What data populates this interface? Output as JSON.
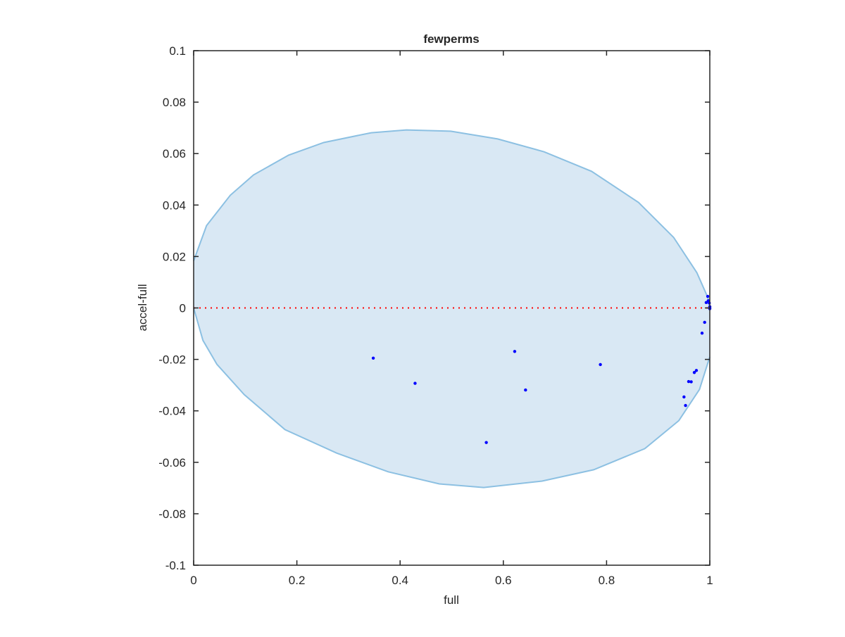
{
  "chart_data": {
    "type": "scatter",
    "title": "fewperms",
    "xlabel": "full",
    "ylabel": "accel-full",
    "xlim": [
      0,
      1
    ],
    "ylim": [
      -0.1,
      0.1
    ],
    "grid": false,
    "box": true,
    "xticks": [
      "0",
      "0.2",
      "0.4",
      "0.6",
      "0.8",
      "1"
    ],
    "xtick_values": [
      0,
      0.2,
      0.4,
      0.6,
      0.8,
      1
    ],
    "yticks": [
      "0.1",
      "0.08",
      "0.06",
      "0.04",
      "0.02",
      "0",
      "-0.02",
      "-0.04",
      "-0.06",
      "-0.08",
      "-0.1"
    ],
    "ytick_values": [
      0.1,
      0.08,
      0.06,
      0.04,
      0.02,
      0,
      -0.02,
      -0.04,
      -0.06,
      -0.08,
      -0.1
    ],
    "shaded_region": {
      "upper": [
        [
          0,
          0.0183
        ],
        [
          0.025,
          0.032
        ],
        [
          0.071,
          0.0438
        ],
        [
          0.116,
          0.0517
        ],
        [
          0.184,
          0.0594
        ],
        [
          0.252,
          0.0643
        ],
        [
          0.344,
          0.0681
        ],
        [
          0.412,
          0.0692
        ],
        [
          0.498,
          0.0687
        ],
        [
          0.589,
          0.0657
        ],
        [
          0.679,
          0.0607
        ],
        [
          0.771,
          0.0531
        ],
        [
          0.862,
          0.041
        ],
        [
          0.93,
          0.0274
        ],
        [
          0.975,
          0.0137
        ],
        [
          0.993,
          0.0055
        ],
        [
          1,
          0.002
        ]
      ],
      "lower": [
        [
          0,
          0
        ],
        [
          0.018,
          -0.0126
        ],
        [
          0.045,
          -0.0219
        ],
        [
          0.098,
          -0.0337
        ],
        [
          0.177,
          -0.0473
        ],
        [
          0.277,
          -0.0564
        ],
        [
          0.377,
          -0.0637
        ],
        [
          0.476,
          -0.0684
        ],
        [
          0.562,
          -0.0698
        ],
        [
          0.675,
          -0.0673
        ],
        [
          0.775,
          -0.0629
        ],
        [
          0.874,
          -0.0547
        ],
        [
          0.94,
          -0.0438
        ],
        [
          0.98,
          -0.0317
        ],
        [
          1,
          -0.019
        ]
      ],
      "fill_color": "#d9e8f4",
      "edge_color": "#8cc0e2"
    },
    "reference_line": {
      "y": 0,
      "color": "#ff0000",
      "style": "dotted"
    },
    "series": [
      {
        "color": "#0000ff",
        "points": [
          [
            0.348,
            -0.0195
          ],
          [
            0.429,
            -0.0293
          ],
          [
            0.622,
            -0.0169
          ],
          [
            0.643,
            -0.0319
          ],
          [
            0.567,
            -0.0523
          ],
          [
            0.788,
            -0.022
          ],
          [
            0.996,
            0.0045
          ],
          [
            0.997,
            0.0028
          ],
          [
            0.993,
            0.0021
          ],
          [
            0.999,
            0.0019
          ],
          [
            1.0,
            0.0001
          ],
          [
            1.0,
            0.0005
          ],
          [
            1.0,
            -0.0003
          ],
          [
            0.99,
            -0.0056
          ],
          [
            0.985,
            -0.0098
          ],
          [
            0.974,
            -0.0243
          ],
          [
            0.97,
            -0.0251
          ],
          [
            0.964,
            -0.0287
          ],
          [
            0.959,
            -0.0286
          ],
          [
            0.95,
            -0.0346
          ],
          [
            0.953,
            -0.0379
          ]
        ]
      }
    ]
  }
}
